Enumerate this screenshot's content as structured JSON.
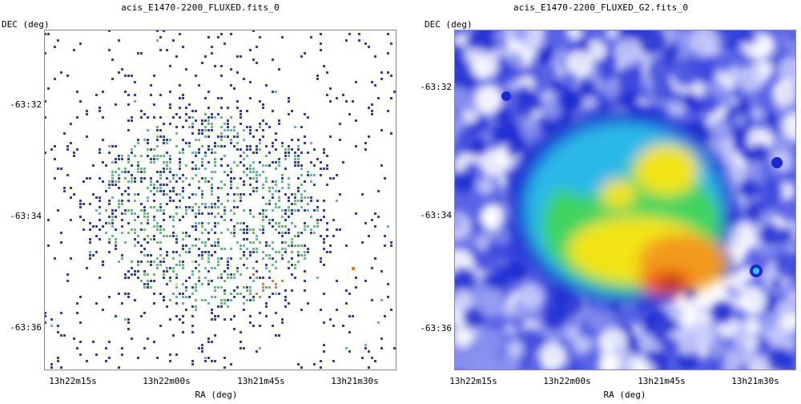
{
  "panels": [
    {
      "title": "acis_E1470-2200_FLUXED.fits_0",
      "ylabel": "DEC (deg)",
      "xlabel": "RA (deg)",
      "yticks": [
        "-63:32",
        "-63:34",
        "-63:36"
      ],
      "xticks": [
        "13h22m15s",
        "13h22m00s",
        "13h21m45s",
        "13h21m30s"
      ]
    },
    {
      "title": "acis_E1470-2200_FLUXED_G2.fits_0",
      "ylabel": "DEC (deg)",
      "xlabel": "RA (deg)",
      "yticks": [
        "-63:32",
        "-63:34",
        "-63:36"
      ],
      "xticks": [
        "13h22m15s",
        "13h22m00s",
        "13h21m45s",
        "13h21m30s"
      ]
    }
  ],
  "colors": {
    "frame": "#888888",
    "low": "#1d3fd6",
    "mid_low": "#35c6e6",
    "mid": "#39d65b",
    "mid_high": "#f2e416",
    "high": "#f27a12",
    "peak": "#7a0c0c"
  }
}
